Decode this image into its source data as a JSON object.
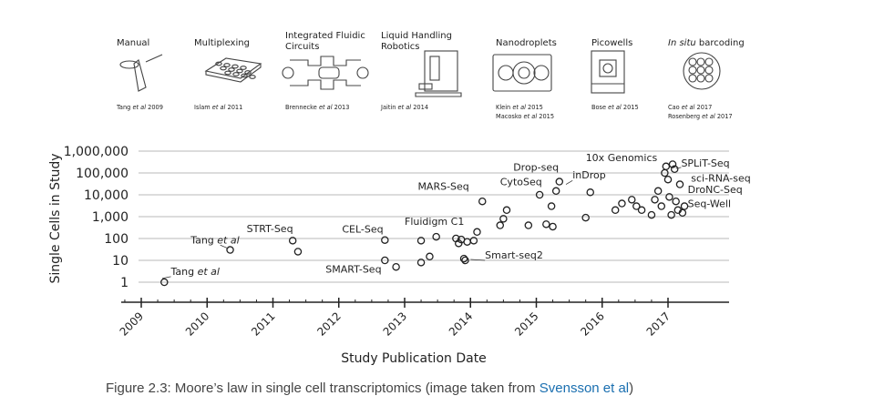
{
  "header": {
    "methods": [
      {
        "lines": [
          "Manual"
        ],
        "ref": [
          "Tang et al 2009"
        ]
      },
      {
        "lines": [
          "Multiplexing"
        ],
        "ref": [
          "Islam et al 2011"
        ]
      },
      {
        "lines": [
          "Integrated Fluidic",
          "Circuits"
        ],
        "ref": [
          "Brennecke et al 2013"
        ]
      },
      {
        "lines": [
          "Liquid Handling",
          "Robotics"
        ],
        "ref": [
          "Jaitin et al 2014"
        ]
      },
      {
        "lines": [
          "Nanodroplets"
        ],
        "ref": [
          "Klein et al 2015",
          "Macosko et al 2015"
        ]
      },
      {
        "lines": [
          "Picowells"
        ],
        "ref": [
          "Bose et al 2015"
        ]
      },
      {
        "lines": [
          "In situ barcoding"
        ],
        "ref": [
          "Cao et al 2017",
          "Rosenberg et al 2017"
        ]
      }
    ]
  },
  "chart_data": {
    "type": "scatter",
    "ylabel": "Single Cells in Study",
    "xlabel": "Study Publication Date",
    "y_scale": "log",
    "yticks": [
      1,
      10,
      100,
      1000,
      10000,
      100000,
      1000000
    ],
    "ytick_labels": [
      "1",
      "10",
      "100",
      "1,000",
      "10,000",
      "100,000",
      "1,000,000"
    ],
    "xticks": [
      2009,
      2010,
      2011,
      2012,
      2013,
      2014,
      2015,
      2016,
      2017
    ],
    "xtick_labels": [
      "2009",
      "2010",
      "2011",
      "2012",
      "2013",
      "2014",
      "2015",
      "2016",
      "2017"
    ],
    "xlim": [
      2008.75,
      2017.9
    ],
    "ylim": [
      0.5,
      1500000
    ],
    "points": [
      {
        "x": 2009.35,
        "y": 1
      },
      {
        "x": 2010.35,
        "y": 30
      },
      {
        "x": 2011.3,
        "y": 80
      },
      {
        "x": 2011.38,
        "y": 25
      },
      {
        "x": 2012.7,
        "y": 85
      },
      {
        "x": 2012.7,
        "y": 10
      },
      {
        "x": 2012.87,
        "y": 5
      },
      {
        "x": 2013.25,
        "y": 80
      },
      {
        "x": 2013.25,
        "y": 8
      },
      {
        "x": 2013.38,
        "y": 15
      },
      {
        "x": 2013.48,
        "y": 120
      },
      {
        "x": 2013.78,
        "y": 100
      },
      {
        "x": 2013.82,
        "y": 60
      },
      {
        "x": 2013.86,
        "y": 90
      },
      {
        "x": 2013.9,
        "y": 12
      },
      {
        "x": 2013.92,
        "y": 10
      },
      {
        "x": 2013.95,
        "y": 70
      },
      {
        "x": 2014.05,
        "y": 80
      },
      {
        "x": 2014.1,
        "y": 200
      },
      {
        "x": 2014.18,
        "y": 5000
      },
      {
        "x": 2014.45,
        "y": 400
      },
      {
        "x": 2014.5,
        "y": 800
      },
      {
        "x": 2014.55,
        "y": 2000
      },
      {
        "x": 2014.88,
        "y": 400
      },
      {
        "x": 2015.05,
        "y": 10000
      },
      {
        "x": 2015.15,
        "y": 450
      },
      {
        "x": 2015.25,
        "y": 350
      },
      {
        "x": 2015.23,
        "y": 3000
      },
      {
        "x": 2015.3,
        "y": 15000
      },
      {
        "x": 2015.35,
        "y": 40000
      },
      {
        "x": 2015.75,
        "y": 900
      },
      {
        "x": 2015.82,
        "y": 13000
      },
      {
        "x": 2016.2,
        "y": 2000
      },
      {
        "x": 2016.3,
        "y": 4000
      },
      {
        "x": 2016.45,
        "y": 6000
      },
      {
        "x": 2016.52,
        "y": 3000
      },
      {
        "x": 2016.6,
        "y": 2000
      },
      {
        "x": 2016.75,
        "y": 1200
      },
      {
        "x": 2016.8,
        "y": 6000
      },
      {
        "x": 2016.85,
        "y": 15000
      },
      {
        "x": 2016.9,
        "y": 3000
      },
      {
        "x": 2016.95,
        "y": 100000
      },
      {
        "x": 2016.97,
        "y": 200000
      },
      {
        "x": 2017.0,
        "y": 50000
      },
      {
        "x": 2017.02,
        "y": 8000
      },
      {
        "x": 2017.05,
        "y": 1200
      },
      {
        "x": 2017.07,
        "y": 250000
      },
      {
        "x": 2017.1,
        "y": 150000
      },
      {
        "x": 2017.12,
        "y": 5000
      },
      {
        "x": 2017.15,
        "y": 2000
      },
      {
        "x": 2017.18,
        "y": 30000
      },
      {
        "x": 2017.22,
        "y": 1500
      },
      {
        "x": 2017.25,
        "y": 3000
      }
    ],
    "annotations": [
      {
        "text": "Tang et al",
        "italic_part": "et al",
        "x": 2009.45,
        "y": 2.2
      },
      {
        "text": "Tang et al",
        "italic_part": "et al",
        "x": 2009.75,
        "y": 58
      },
      {
        "text": "STRT-Seq",
        "x": 2010.6,
        "y": 200
      },
      {
        "text": "CEL-Seq",
        "x": 2012.05,
        "y": 190
      },
      {
        "text": "SMART-Seq",
        "x": 2011.8,
        "y": 2.8
      },
      {
        "text": "Fluidigm C1",
        "x": 213.0,
        "y": 420
      },
      {
        "text": "Smart-seq2",
        "x": 2014.22,
        "y": 12
      },
      {
        "text": "MARS-Seq",
        "x": 2013.2,
        "y": 17000
      },
      {
        "text": "CytoSeq",
        "x": 2014.45,
        "y": 27000
      },
      {
        "text": "Drop-seq",
        "x": 2014.65,
        "y": 130000
      },
      {
        "text": "inDrop",
        "x": 2015.55,
        "y": 55000
      },
      {
        "text": "10x Genomics",
        "x": 2015.75,
        "y": 350000
      },
      {
        "text": "SPLiT-Seq",
        "x": 2017.2,
        "y": 200000
      },
      {
        "text": "sci-RNA-seq",
        "x": 2017.35,
        "y": 40000
      },
      {
        "text": "DroNC-Seq",
        "x": 2017.3,
        "y": 12000
      },
      {
        "text": "Seq-Well",
        "x": 2017.3,
        "y": 2700
      }
    ]
  },
  "caption": {
    "prefix": "Figure 2.3: Moore’s law in single cell transcriptomics (image taken from ",
    "link": "Svensson et al",
    "suffix": ")"
  }
}
